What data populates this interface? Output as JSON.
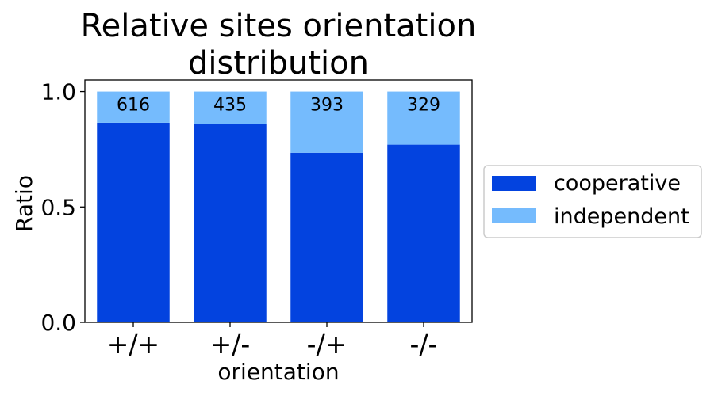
{
  "chart_data": {
    "type": "bar",
    "stacked": true,
    "title_lines": [
      "Relative sites orientation",
      "distribution"
    ],
    "xlabel": "orientation",
    "ylabel": "Ratio",
    "categories": [
      "+/+",
      "+/-",
      "-/+",
      "-/-"
    ],
    "counts": [
      "616",
      "435",
      "393",
      "329"
    ],
    "series": [
      {
        "name": "cooperative",
        "color": "#0343df",
        "values": [
          0.865,
          0.86,
          0.735,
          0.77
        ]
      },
      {
        "name": "independent",
        "color": "#75bbfd",
        "values": [
          0.135,
          0.14,
          0.265,
          0.23
        ]
      }
    ],
    "ylim": [
      0,
      1.05
    ],
    "yticks": [
      {
        "value": 0.0,
        "label": "0.0"
      },
      {
        "value": 0.5,
        "label": "0.5"
      },
      {
        "value": 1.0,
        "label": "1.0"
      }
    ],
    "legend": {
      "placement": "right"
    }
  }
}
